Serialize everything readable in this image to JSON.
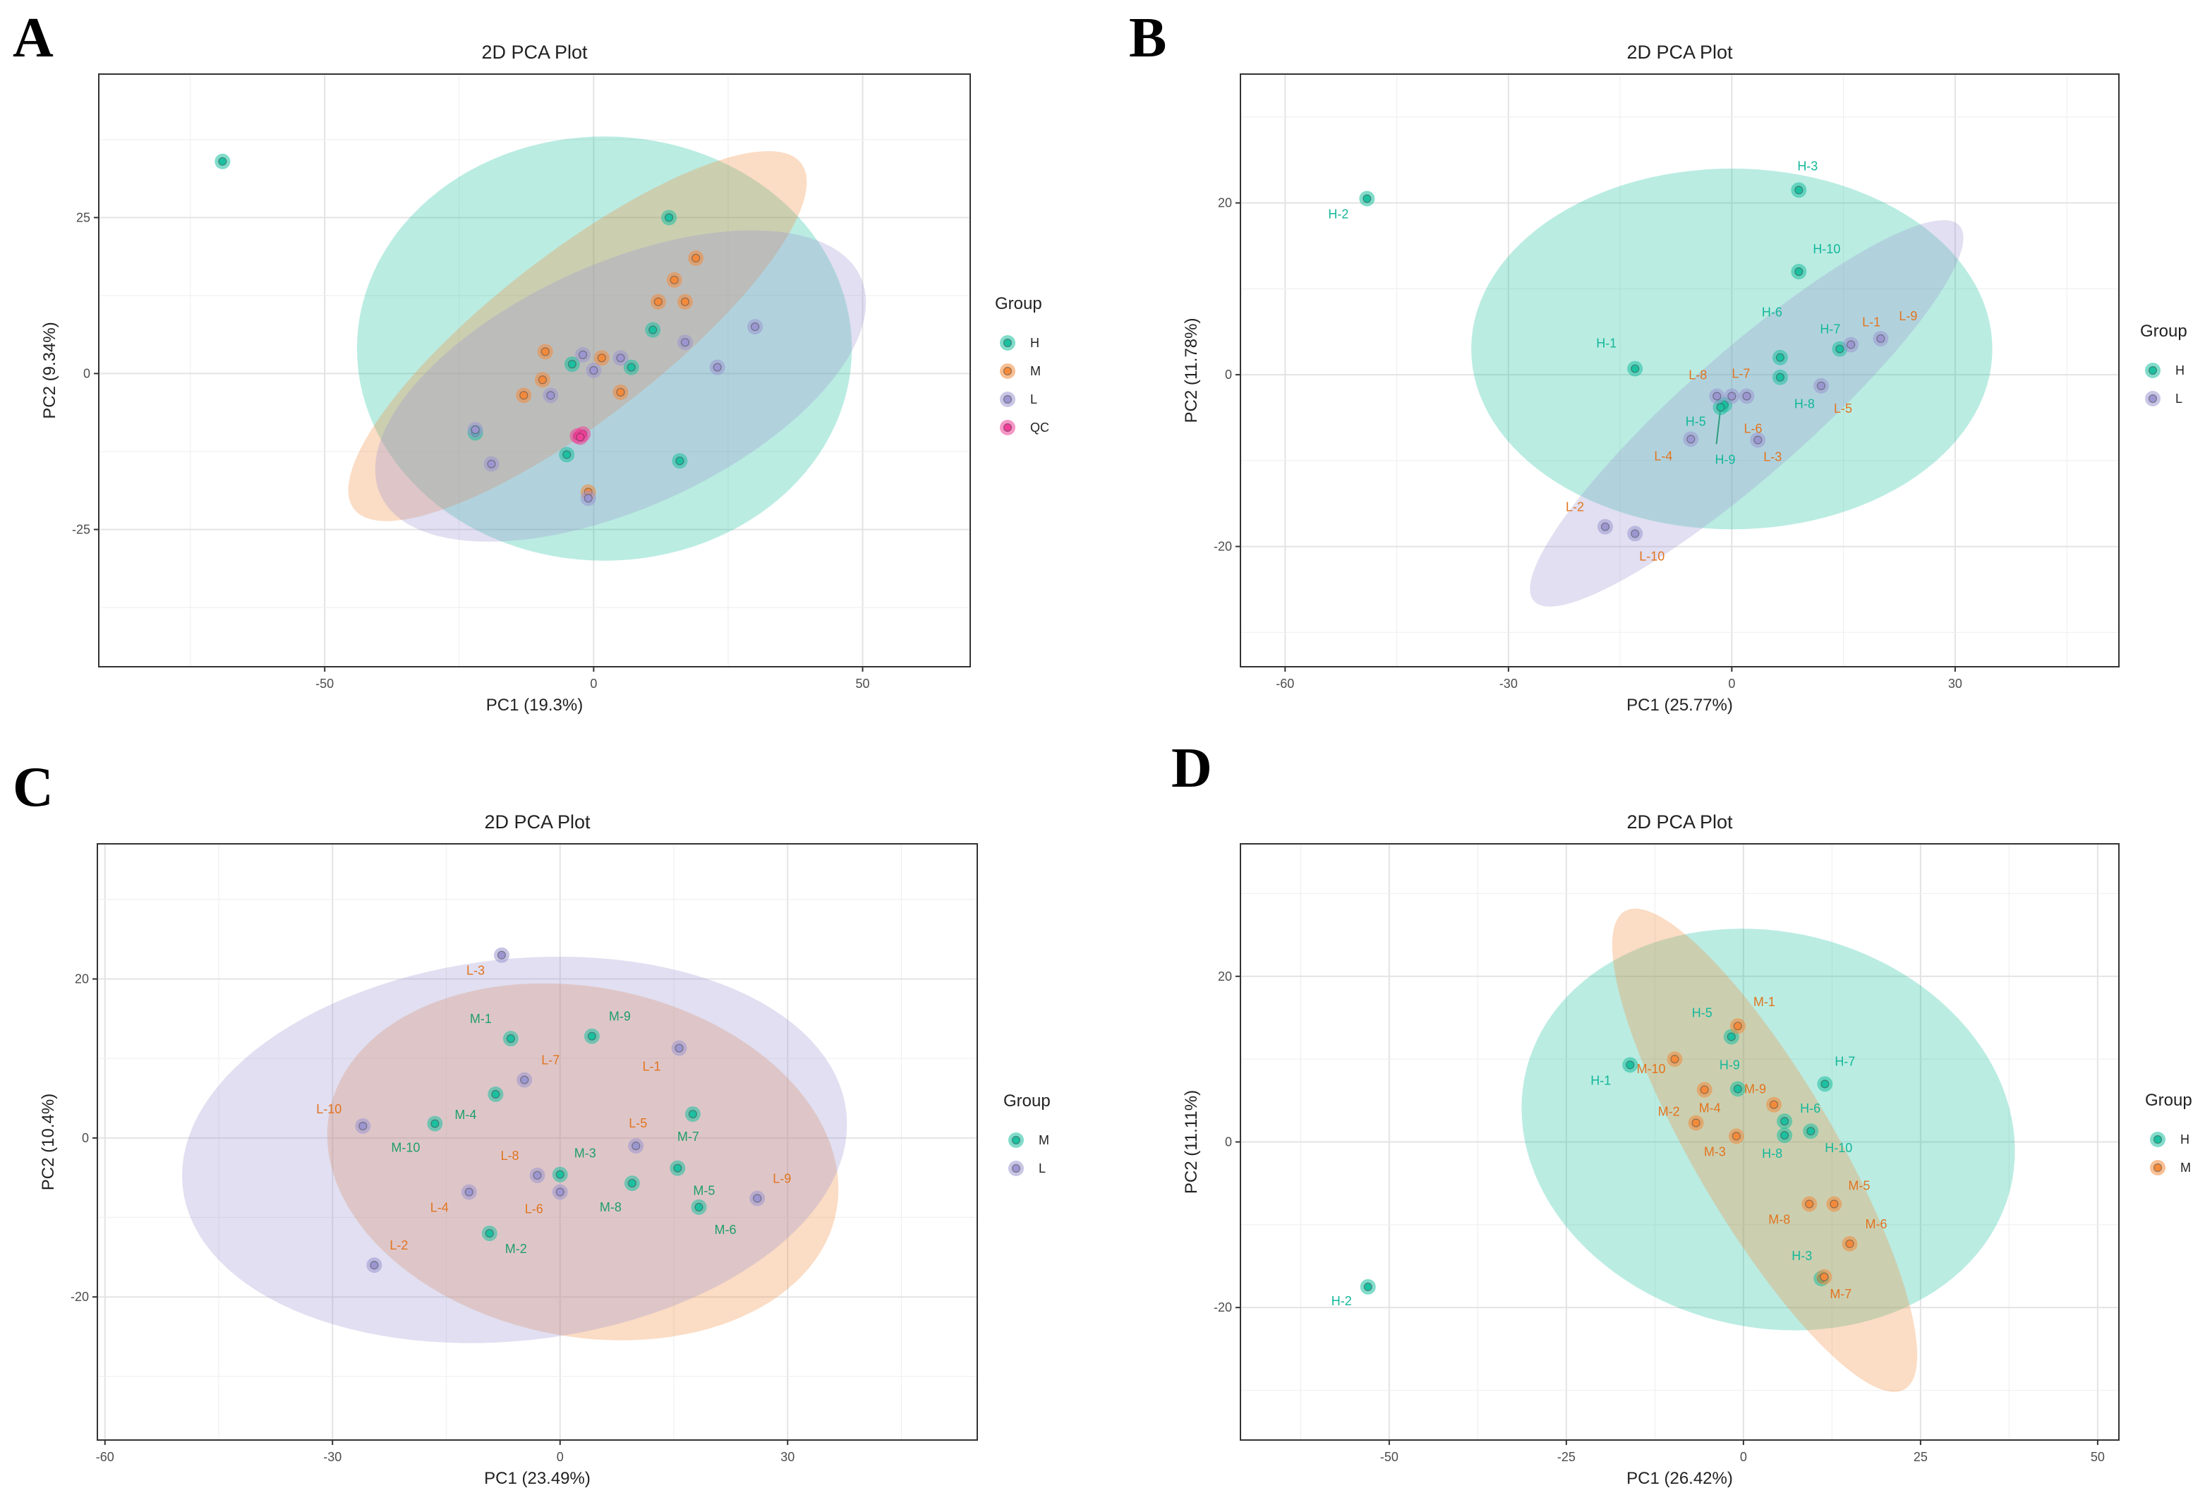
{
  "colors": {
    "H": "#1cbfa0",
    "M": "#f28a3c",
    "L": "#9b96cf",
    "QC": "#ef3f98",
    "H_label": "#14b79a",
    "M_label": "#e2741f",
    "M_text_C": "#1f9e6a"
  },
  "chart_data": [
    {
      "panel": "A",
      "type": "scatter",
      "title": "2D PCA Plot",
      "xlabel": "PC1 (19.3%)",
      "ylabel": "PC2 (9.34%)",
      "xlim": [
        -92,
        70
      ],
      "ylim": [
        -47,
        48
      ],
      "xticks": [
        -50,
        0,
        50
      ],
      "yticks": [
        -25,
        0,
        25
      ],
      "grid": true,
      "legend": {
        "title": "Group",
        "position": "right",
        "entries": [
          "H",
          "M",
          "L",
          "QC"
        ]
      },
      "ellipses": [
        {
          "group": "H",
          "cx": 2,
          "cy": 4,
          "rx": 46,
          "ry": 34,
          "angle": 0
        },
        {
          "group": "M",
          "cx": -3,
          "cy": 6,
          "rx": 50,
          "ry": 14,
          "angle": 33
        },
        {
          "group": "L",
          "cx": 5,
          "cy": -2,
          "rx": 48,
          "ry": 20,
          "angle": 20
        }
      ],
      "points": [
        {
          "group": "H",
          "x": -69,
          "y": 34
        },
        {
          "group": "H",
          "x": 14,
          "y": 25
        },
        {
          "group": "H",
          "x": 11,
          "y": 7
        },
        {
          "group": "H",
          "x": -4,
          "y": 1.5
        },
        {
          "group": "H",
          "x": 7,
          "y": 1
        },
        {
          "group": "H",
          "x": -22,
          "y": -9.5
        },
        {
          "group": "H",
          "x": -5,
          "y": -13
        },
        {
          "group": "H",
          "x": 16,
          "y": -14
        },
        {
          "group": "M",
          "x": 19,
          "y": 18.5
        },
        {
          "group": "M",
          "x": 15,
          "y": 15
        },
        {
          "group": "M",
          "x": 12,
          "y": 11.5
        },
        {
          "group": "M",
          "x": 17,
          "y": 11.5
        },
        {
          "group": "M",
          "x": -9,
          "y": 3.5
        },
        {
          "group": "M",
          "x": 1.5,
          "y": 2.5
        },
        {
          "group": "M",
          "x": -9.5,
          "y": -1
        },
        {
          "group": "M",
          "x": -13,
          "y": -3.5
        },
        {
          "group": "M",
          "x": 5,
          "y": -3
        },
        {
          "group": "M",
          "x": -1,
          "y": -19
        },
        {
          "group": "L",
          "x": 30,
          "y": 7.5
        },
        {
          "group": "L",
          "x": 23,
          "y": 1
        },
        {
          "group": "L",
          "x": 17,
          "y": 5
        },
        {
          "group": "L",
          "x": -2,
          "y": 3
        },
        {
          "group": "L",
          "x": 5,
          "y": 2.5
        },
        {
          "group": "L",
          "x": 0,
          "y": 0.5
        },
        {
          "group": "L",
          "x": -8,
          "y": -3.5
        },
        {
          "group": "L",
          "x": -19,
          "y": -14.5
        },
        {
          "group": "L",
          "x": -22,
          "y": -9
        },
        {
          "group": "L",
          "x": -1,
          "y": -20
        },
        {
          "group": "QC",
          "x": -3,
          "y": -10
        },
        {
          "group": "QC",
          "x": -2,
          "y": -9.7
        },
        {
          "group": "QC",
          "x": -2.5,
          "y": -10.2
        }
      ]
    },
    {
      "panel": "B",
      "type": "scatter",
      "title": "2D PCA Plot",
      "xlabel": "PC1 (25.77%)",
      "ylabel": "PC2 (11.78%)",
      "xlim": [
        -66,
        52
      ],
      "ylim": [
        -34,
        35
      ],
      "xticks": [
        -60,
        -30,
        0,
        30
      ],
      "yticks": [
        -20,
        0,
        20
      ],
      "grid": true,
      "legend": {
        "title": "Group",
        "position": "right",
        "entries": [
          "H",
          "L"
        ]
      },
      "ellipses": [
        {
          "group": "H",
          "cx": 0,
          "cy": 3,
          "rx": 35,
          "ry": 21,
          "angle": 0
        },
        {
          "group": "L",
          "cx": 2,
          "cy": -4.5,
          "rx": 36,
          "ry": 7.6,
          "angle": 37
        }
      ],
      "points": [
        {
          "group": "H",
          "label": "H-2",
          "x": -49,
          "y": 20.5
        },
        {
          "group": "H",
          "label": "H-3",
          "x": 9,
          "y": 21.5
        },
        {
          "group": "H",
          "label": "H-10",
          "x": 9,
          "y": 12
        },
        {
          "group": "H",
          "label": "H-1",
          "x": -13,
          "y": 0.7
        },
        {
          "group": "H",
          "label": "H-6",
          "x": 6.5,
          "y": 2
        },
        {
          "group": "H",
          "label": "H-7",
          "x": 14.5,
          "y": 3
        },
        {
          "group": "H",
          "label": "H-8",
          "x": 6.5,
          "y": -0.3
        },
        {
          "group": "H",
          "label": "H-5",
          "x": -1,
          "y": -3.5
        },
        {
          "group": "H",
          "label": "H-9",
          "x": -1.5,
          "y": -3.8
        },
        {
          "group": "L",
          "label": "L-1",
          "x": 16,
          "y": 3.5
        },
        {
          "group": "L",
          "label": "L-9",
          "x": 20,
          "y": 4.2
        },
        {
          "group": "L",
          "label": "L-5",
          "x": 12,
          "y": -1.3
        },
        {
          "group": "L",
          "label": "L-8",
          "x": -2,
          "y": -2.5
        },
        {
          "group": "L",
          "label": "L-7",
          "x": 0,
          "y": -2.5
        },
        {
          "group": "L",
          "label": "L-6",
          "x": 2,
          "y": -2.5
        },
        {
          "group": "L",
          "label": "L-4",
          "x": -5.5,
          "y": -7.5
        },
        {
          "group": "L",
          "label": "L-3",
          "x": 3.5,
          "y": -7.6
        },
        {
          "group": "L",
          "label": "L-2",
          "x": -17,
          "y": -17.7
        },
        {
          "group": "L",
          "label": "L-10",
          "x": -13,
          "y": -18.5
        }
      ]
    },
    {
      "panel": "C",
      "type": "scatter",
      "title": "2D PCA Plot",
      "xlabel": "PC1 (23.49%)",
      "ylabel": "PC2 (10.4%)",
      "xlim": [
        -61,
        55
      ],
      "ylim": [
        -38,
        37
      ],
      "xticks": [
        -60,
        -30,
        0,
        30
      ],
      "yticks": [
        -20,
        0,
        20
      ],
      "grid": true,
      "legend": {
        "title": "Group",
        "position": "right",
        "entries": [
          "M",
          "L"
        ]
      },
      "ellipses": [
        {
          "group": "M",
          "cx": 3,
          "cy": -3,
          "rx": 34,
          "ry": 22,
          "angle": -10
        },
        {
          "group": "L",
          "cx": -6,
          "cy": -1.5,
          "rx": 44,
          "ry": 24,
          "angle": 6
        }
      ],
      "points": [
        {
          "group": "M",
          "label": "M-1",
          "x": -6.5,
          "y": 12.5
        },
        {
          "group": "M",
          "label": "M-9",
          "x": 4.2,
          "y": 12.8
        },
        {
          "group": "M",
          "label": "M-4",
          "x": -8.5,
          "y": 5.5
        },
        {
          "group": "M",
          "label": "M-10",
          "x": -16.5,
          "y": 1.8
        },
        {
          "group": "M",
          "label": "M-7",
          "x": 17.5,
          "y": 3
        },
        {
          "group": "M",
          "label": "M-3",
          "x": 0,
          "y": -4.6
        },
        {
          "group": "M",
          "label": "M-8",
          "x": 9.5,
          "y": -5.7
        },
        {
          "group": "M",
          "label": "M-5",
          "x": 15.5,
          "y": -3.8
        },
        {
          "group": "M",
          "label": "M-6",
          "x": 18.3,
          "y": -8.7
        },
        {
          "group": "M",
          "label": "M-2",
          "x": -9.3,
          "y": -12
        },
        {
          "group": "L",
          "label": "L-3",
          "x": -7.7,
          "y": 23
        },
        {
          "group": "L",
          "label": "L-7",
          "x": -4.7,
          "y": 7.3
        },
        {
          "group": "L",
          "label": "L-1",
          "x": 15.7,
          "y": 11.3
        },
        {
          "group": "L",
          "label": "L-10",
          "x": -26,
          "y": 1.5
        },
        {
          "group": "L",
          "label": "L-5",
          "x": 10,
          "y": -1
        },
        {
          "group": "L",
          "label": "L-8",
          "x": -3,
          "y": -4.7
        },
        {
          "group": "L",
          "label": "L-6",
          "x": 0,
          "y": -6.8
        },
        {
          "group": "L",
          "label": "L-4",
          "x": -12,
          "y": -6.8
        },
        {
          "group": "L",
          "label": "L-9",
          "x": 26,
          "y": -7.6
        },
        {
          "group": "L",
          "label": "L-2",
          "x": -24.5,
          "y": -16
        }
      ]
    },
    {
      "panel": "D",
      "type": "scatter",
      "title": "2D PCA Plot",
      "xlabel": "PC1 (26.42%)",
      "ylabel": "PC2 (11.11%)",
      "xlim": [
        -71,
        53
      ],
      "ylim": [
        -36,
        36
      ],
      "xticks": [
        -50,
        -25,
        0,
        25,
        50
      ],
      "yticks": [
        -20,
        0,
        20
      ],
      "grid": true,
      "legend": {
        "title": "Group",
        "position": "right",
        "entries": [
          "H",
          "M"
        ]
      },
      "ellipses": [
        {
          "group": "H",
          "cx": 3.5,
          "cy": 1.5,
          "rx": 35,
          "ry": 24,
          "angle": -8
        },
        {
          "group": "M",
          "cx": 3,
          "cy": -1,
          "rx": 35,
          "ry": 9.5,
          "angle": -55
        }
      ],
      "points": [
        {
          "group": "H",
          "label": "H-5",
          "x": -1.7,
          "y": 12.7
        },
        {
          "group": "H",
          "label": "H-1",
          "x": -16,
          "y": 9.3
        },
        {
          "group": "H",
          "label": "H-9",
          "x": -0.8,
          "y": 6.4
        },
        {
          "group": "H",
          "label": "H-7",
          "x": 11.5,
          "y": 7
        },
        {
          "group": "H",
          "label": "H-6",
          "x": 5.8,
          "y": 2.5
        },
        {
          "group": "H",
          "label": "H-10",
          "x": 9.5,
          "y": 1.3
        },
        {
          "group": "H",
          "label": "H-8",
          "x": 5.8,
          "y": 0.8
        },
        {
          "group": "H",
          "label": "H-3",
          "x": 11,
          "y": -16.5
        },
        {
          "group": "H",
          "label": "H-2",
          "x": -53,
          "y": -17.5
        },
        {
          "group": "M",
          "label": "M-1",
          "x": -0.8,
          "y": 14
        },
        {
          "group": "M",
          "label": "M-10",
          "x": -9.7,
          "y": 10
        },
        {
          "group": "M",
          "label": "M-9",
          "x": 4.3,
          "y": 4.5
        },
        {
          "group": "M",
          "label": "M-4",
          "x": -5.5,
          "y": 6.3
        },
        {
          "group": "M",
          "label": "M-2",
          "x": -6.7,
          "y": 2.3
        },
        {
          "group": "M",
          "label": "M-3",
          "x": -1,
          "y": 0.7
        },
        {
          "group": "M",
          "label": "M-5",
          "x": 12.8,
          "y": -7.5
        },
        {
          "group": "M",
          "label": "M-8",
          "x": 9.3,
          "y": -7.5
        },
        {
          "group": "M",
          "label": "M-6",
          "x": 15,
          "y": -12.3
        },
        {
          "group": "M",
          "label": "M-7",
          "x": 11.4,
          "y": -16.3
        }
      ]
    }
  ]
}
